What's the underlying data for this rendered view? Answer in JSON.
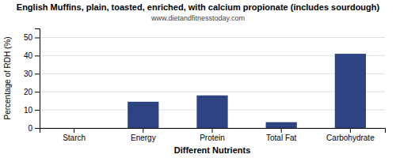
{
  "chart_data": {
    "type": "bar",
    "title": "English Muffins, plain, toasted, enriched, with calcium propionate (includes sourdough)",
    "subtitle": "www.dietandfitnesstoday.com",
    "categories": [
      "Starch",
      "Energy",
      "Protein",
      "Total Fat",
      "Carbohydrate"
    ],
    "values": [
      0,
      14.5,
      18.0,
      3.2,
      41.0
    ],
    "color": "#2e4482",
    "xlabel": "Different Nutrients",
    "ylabel": "Percentage of RDH (%)",
    "ylim": [
      0,
      55
    ],
    "yticks": [
      0,
      10,
      20,
      30,
      40,
      50
    ],
    "grid": true
  }
}
